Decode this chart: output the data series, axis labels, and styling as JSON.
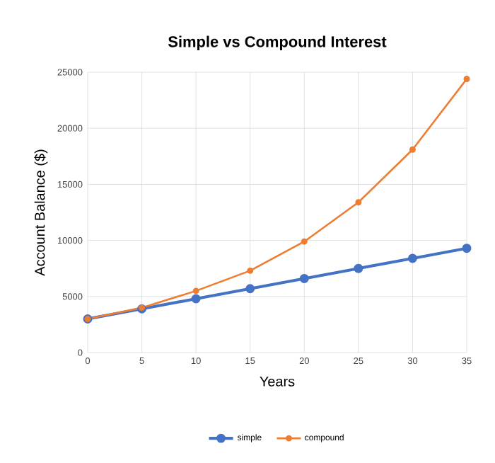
{
  "chart_data": {
    "type": "line",
    "title": "Simple vs Compound Interest",
    "xlabel": "Years",
    "ylabel": "Account Balance ($)",
    "x": [
      0,
      5,
      10,
      15,
      20,
      25,
      30,
      35
    ],
    "series": [
      {
        "name": "simple",
        "color": "#4472c4",
        "values": [
          3000,
          3900,
          4800,
          5700,
          6600,
          7500,
          8400,
          9300
        ]
      },
      {
        "name": "compound",
        "color": "#ed7d31",
        "values": [
          3000,
          4000,
          5500,
          7300,
          9900,
          13400,
          18100,
          24400
        ]
      }
    ],
    "xlim": [
      0,
      35
    ],
    "ylim": [
      0,
      25000
    ],
    "xticks": [
      0,
      5,
      10,
      15,
      20,
      25,
      30,
      35
    ],
    "yticks": [
      0,
      5000,
      10000,
      15000,
      20000,
      25000
    ],
    "grid": true,
    "legend": "bottom",
    "marker": "circle",
    "line_style": "solid"
  }
}
